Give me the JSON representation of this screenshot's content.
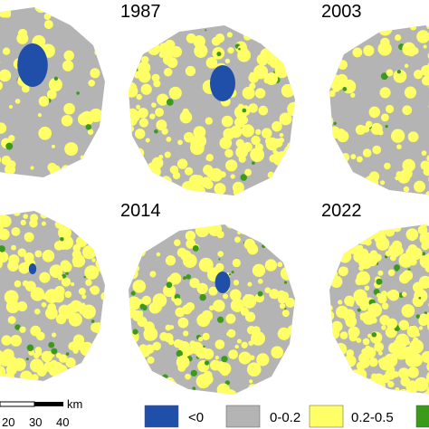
{
  "panels": [
    {
      "year": "1987"
    },
    {
      "year": "2003"
    },
    {
      "year": "2014"
    },
    {
      "year": "2022"
    }
  ],
  "scale_bar": {
    "unit": "km",
    "labels": [
      "20",
      "30",
      "40"
    ]
  },
  "legend": {
    "items": [
      {
        "label": "<0",
        "color": "#1f4fa8"
      },
      {
        "label": "0-0.2",
        "color": "#b4b4b4"
      },
      {
        "label": "0.2-0.5",
        "color": "#ffff66"
      },
      {
        "color": "#3a9a1a"
      }
    ]
  }
}
